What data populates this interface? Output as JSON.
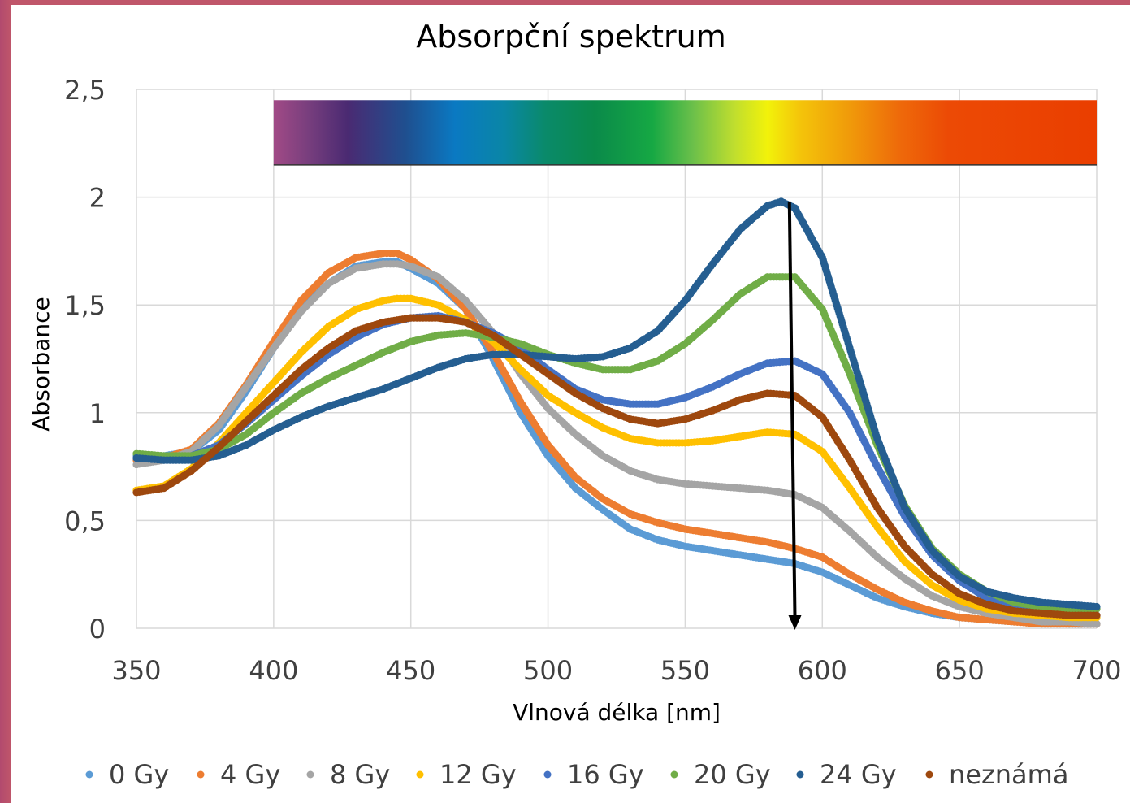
{
  "chart_data": {
    "type": "scatter",
    "title": "Absorpční spektrum",
    "xlabel": "Vlnová délka [nm]",
    "ylabel": "Absorbance",
    "xlim": [
      350,
      700
    ],
    "ylim": [
      0,
      2.5
    ],
    "x_ticks": [
      "350",
      "400",
      "450",
      "500",
      "550",
      "600",
      "650",
      "700"
    ],
    "y_ticks": [
      "0",
      "0,5",
      "1",
      "1,5",
      "2",
      "2,5"
    ],
    "grid": true,
    "legend": "bottom",
    "spectrum_band": {
      "x_range": [
        400,
        700
      ],
      "y_range": [
        2.15,
        2.45
      ]
    },
    "arrow": {
      "x_from": 588,
      "y_from": 1.98,
      "x_to": 590,
      "y_to": 0
    },
    "series": [
      {
        "name": "0 Gy",
        "color": "#5b9bd5",
        "x": [
          350,
          360,
          370,
          380,
          390,
          400,
          410,
          420,
          430,
          440,
          445,
          450,
          460,
          470,
          480,
          490,
          500,
          510,
          520,
          530,
          540,
          550,
          560,
          570,
          580,
          590,
          600,
          610,
          620,
          630,
          640,
          650,
          660,
          670,
          680,
          690,
          700
        ],
        "y": [
          0.8,
          0.8,
          0.82,
          0.92,
          1.1,
          1.3,
          1.48,
          1.6,
          1.68,
          1.7,
          1.7,
          1.67,
          1.6,
          1.48,
          1.25,
          1.0,
          0.8,
          0.65,
          0.55,
          0.46,
          0.41,
          0.38,
          0.36,
          0.34,
          0.32,
          0.3,
          0.26,
          0.2,
          0.14,
          0.1,
          0.07,
          0.05,
          0.04,
          0.03,
          0.03,
          0.02,
          0.02
        ]
      },
      {
        "name": "4 Gy",
        "color": "#ed7d31",
        "x": [
          350,
          360,
          370,
          380,
          390,
          400,
          410,
          420,
          430,
          440,
          445,
          450,
          460,
          470,
          480,
          490,
          500,
          510,
          520,
          530,
          540,
          550,
          560,
          570,
          580,
          590,
          600,
          610,
          620,
          630,
          640,
          650,
          660,
          670,
          680,
          690,
          700
        ],
        "y": [
          0.78,
          0.79,
          0.83,
          0.95,
          1.13,
          1.33,
          1.52,
          1.65,
          1.72,
          1.74,
          1.74,
          1.71,
          1.62,
          1.48,
          1.28,
          1.05,
          0.85,
          0.7,
          0.6,
          0.53,
          0.49,
          0.46,
          0.44,
          0.42,
          0.4,
          0.37,
          0.33,
          0.25,
          0.18,
          0.12,
          0.08,
          0.05,
          0.04,
          0.03,
          0.02,
          0.02,
          0.02
        ]
      },
      {
        "name": "8 Gy",
        "color": "#a5a5a5",
        "x": [
          350,
          360,
          370,
          380,
          390,
          400,
          410,
          420,
          430,
          440,
          445,
          450,
          460,
          470,
          480,
          490,
          500,
          510,
          520,
          530,
          540,
          550,
          560,
          570,
          580,
          590,
          600,
          610,
          620,
          630,
          640,
          650,
          660,
          670,
          680,
          690,
          700
        ],
        "y": [
          0.76,
          0.78,
          0.82,
          0.94,
          1.12,
          1.3,
          1.47,
          1.6,
          1.67,
          1.69,
          1.69,
          1.68,
          1.63,
          1.52,
          1.37,
          1.18,
          1.02,
          0.9,
          0.8,
          0.73,
          0.69,
          0.67,
          0.66,
          0.65,
          0.64,
          0.62,
          0.56,
          0.45,
          0.33,
          0.23,
          0.15,
          0.1,
          0.07,
          0.05,
          0.03,
          0.03,
          0.02
        ]
      },
      {
        "name": "12 Gy",
        "color": "#ffc000",
        "x": [
          350,
          360,
          370,
          380,
          390,
          400,
          410,
          420,
          430,
          440,
          445,
          450,
          460,
          470,
          480,
          490,
          500,
          510,
          520,
          530,
          540,
          550,
          560,
          570,
          580,
          590,
          600,
          610,
          620,
          630,
          640,
          650,
          660,
          670,
          680,
          690,
          700
        ],
        "y": [
          0.64,
          0.66,
          0.74,
          0.86,
          1.0,
          1.14,
          1.28,
          1.4,
          1.48,
          1.52,
          1.53,
          1.53,
          1.5,
          1.43,
          1.33,
          1.2,
          1.08,
          1.0,
          0.93,
          0.88,
          0.86,
          0.86,
          0.87,
          0.89,
          0.91,
          0.9,
          0.82,
          0.65,
          0.47,
          0.31,
          0.2,
          0.13,
          0.09,
          0.07,
          0.06,
          0.05,
          0.05
        ]
      },
      {
        "name": "16 Gy",
        "color": "#4472c4",
        "x": [
          350,
          360,
          370,
          380,
          390,
          400,
          410,
          420,
          430,
          440,
          450,
          460,
          470,
          480,
          490,
          500,
          510,
          520,
          530,
          540,
          550,
          560,
          570,
          580,
          590,
          600,
          610,
          620,
          630,
          640,
          650,
          660,
          670,
          680,
          690,
          700
        ],
        "y": [
          0.79,
          0.79,
          0.8,
          0.85,
          0.95,
          1.06,
          1.17,
          1.27,
          1.35,
          1.41,
          1.44,
          1.45,
          1.42,
          1.37,
          1.3,
          1.2,
          1.11,
          1.06,
          1.04,
          1.04,
          1.07,
          1.12,
          1.18,
          1.23,
          1.24,
          1.18,
          1.0,
          0.75,
          0.52,
          0.34,
          0.22,
          0.14,
          0.1,
          0.08,
          0.07,
          0.06
        ]
      },
      {
        "name": "20 Gy",
        "color": "#70ad47",
        "x": [
          350,
          360,
          370,
          380,
          390,
          400,
          410,
          420,
          430,
          440,
          450,
          460,
          470,
          480,
          490,
          500,
          510,
          520,
          530,
          540,
          550,
          560,
          570,
          580,
          590,
          600,
          610,
          620,
          630,
          640,
          650,
          660,
          670,
          680,
          690,
          700
        ],
        "y": [
          0.81,
          0.8,
          0.8,
          0.83,
          0.9,
          1.0,
          1.09,
          1.16,
          1.22,
          1.28,
          1.33,
          1.36,
          1.37,
          1.35,
          1.32,
          1.27,
          1.23,
          1.2,
          1.2,
          1.24,
          1.32,
          1.43,
          1.55,
          1.63,
          1.63,
          1.48,
          1.18,
          0.85,
          0.57,
          0.37,
          0.25,
          0.17,
          0.12,
          0.1,
          0.09,
          0.09
        ]
      },
      {
        "name": "24 Gy",
        "color": "#255e91",
        "x": [
          350,
          360,
          370,
          380,
          390,
          400,
          410,
          420,
          430,
          440,
          450,
          460,
          470,
          480,
          490,
          500,
          510,
          520,
          530,
          540,
          550,
          560,
          570,
          580,
          585,
          590,
          600,
          610,
          620,
          630,
          640,
          650,
          660,
          670,
          680,
          690,
          700
        ],
        "y": [
          0.79,
          0.78,
          0.78,
          0.8,
          0.85,
          0.92,
          0.98,
          1.03,
          1.07,
          1.11,
          1.16,
          1.21,
          1.25,
          1.27,
          1.27,
          1.26,
          1.25,
          1.26,
          1.3,
          1.38,
          1.52,
          1.69,
          1.85,
          1.96,
          1.98,
          1.95,
          1.72,
          1.3,
          0.88,
          0.56,
          0.36,
          0.24,
          0.17,
          0.14,
          0.12,
          0.11,
          0.1
        ]
      },
      {
        "name": "neznámá",
        "color": "#9e480e",
        "x": [
          350,
          360,
          370,
          380,
          390,
          400,
          410,
          420,
          430,
          440,
          450,
          460,
          470,
          480,
          490,
          500,
          510,
          520,
          530,
          540,
          550,
          560,
          570,
          580,
          590,
          600,
          610,
          620,
          630,
          640,
          650,
          660,
          670,
          680,
          690,
          700
        ],
        "y": [
          0.63,
          0.65,
          0.73,
          0.84,
          0.96,
          1.08,
          1.2,
          1.3,
          1.38,
          1.42,
          1.44,
          1.44,
          1.42,
          1.36,
          1.27,
          1.18,
          1.09,
          1.02,
          0.97,
          0.95,
          0.97,
          1.01,
          1.06,
          1.09,
          1.08,
          0.98,
          0.78,
          0.56,
          0.38,
          0.25,
          0.16,
          0.11,
          0.08,
          0.07,
          0.06,
          0.06
        ]
      }
    ]
  }
}
